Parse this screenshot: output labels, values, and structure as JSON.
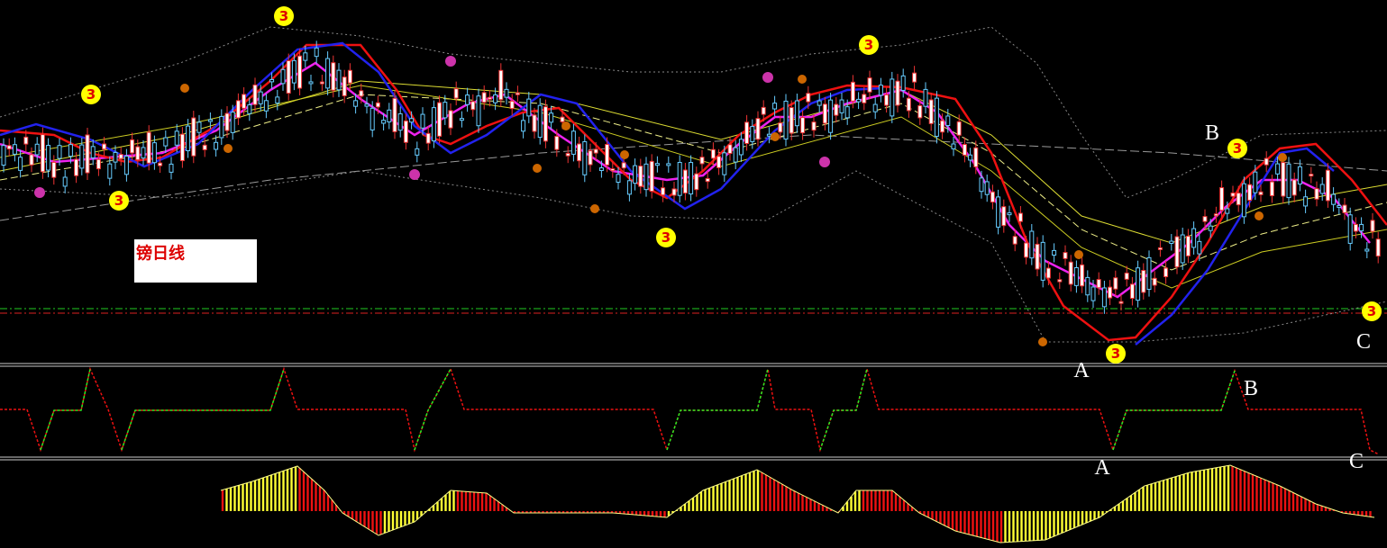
{
  "label_box": {
    "text": "镑日线"
  },
  "main_panel": {
    "signals": [
      "3",
      "3",
      "3",
      "3",
      "3",
      "3",
      "3",
      "3"
    ],
    "wave_labels": [
      "B",
      "C"
    ]
  },
  "kdj_panel": {
    "wave_labels": [
      "A",
      "B"
    ]
  },
  "macd_panel": {
    "wave_labels": [
      "A",
      "C"
    ]
  }
}
